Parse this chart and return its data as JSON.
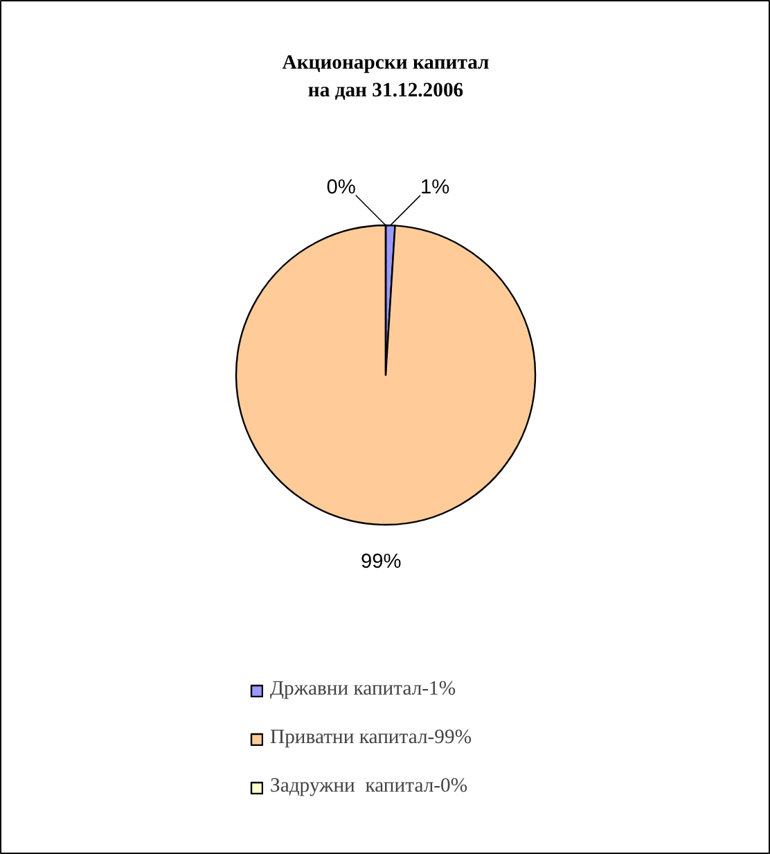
{
  "chart_data": {
    "type": "pie",
    "title": "Акционарски капитал\nна дан 31.12.2006",
    "categories": [
      "Државни капитал-1%",
      "Приватни капитал-99%",
      "Задружни  капитал-0%"
    ],
    "values": [
      1,
      99,
      0
    ],
    "colors": [
      "#9999ff",
      "#ffcc99",
      "#ffffcc"
    ],
    "value_labels": [
      "1%",
      "99%",
      "0%"
    ],
    "legend": "bottom"
  }
}
